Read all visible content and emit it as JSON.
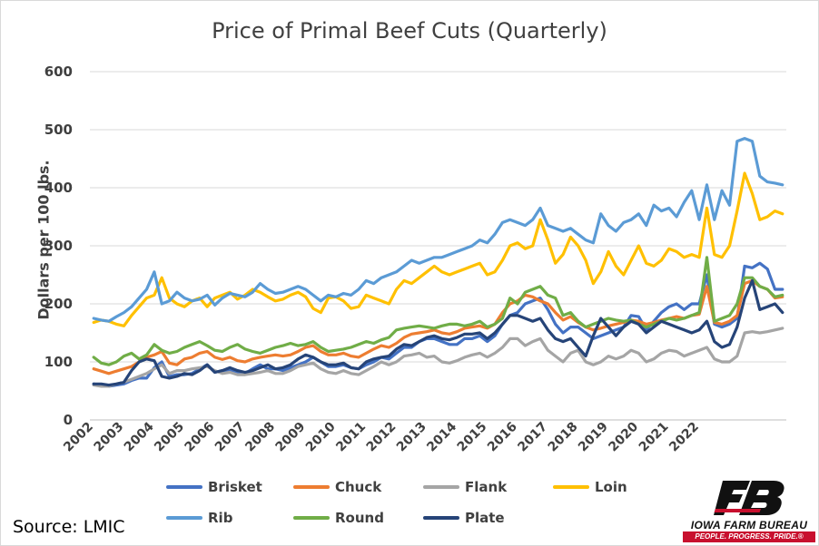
{
  "chart_data": {
    "type": "line",
    "title": "Price of Primal Beef Cuts (Quarterly)",
    "ylabel": "Dollars per 100 lbs.",
    "xlabel": "",
    "ylim": [
      0,
      600
    ],
    "yticks": [
      0,
      100,
      200,
      300,
      400,
      500,
      600
    ],
    "x_tick_labels": [
      "2002",
      "2003",
      "2004",
      "2005",
      "2006",
      "2007",
      "2008",
      "2009",
      "2010",
      "2011",
      "2012",
      "2013",
      "2014",
      "2015",
      "2016",
      "2017",
      "2018",
      "2019",
      "2020",
      "2021",
      "2022"
    ],
    "x_start_year": 2002,
    "grid": "horizontal",
    "legend_position": "bottom",
    "series": [
      {
        "name": "Brisket",
        "color": "#4472c4",
        "values": [
          62,
          60,
          58,
          60,
          62,
          68,
          72,
          72,
          90,
          100,
          75,
          78,
          78,
          80,
          88,
          95,
          82,
          85,
          85,
          82,
          80,
          88,
          95,
          88,
          88,
          85,
          90,
          95,
          100,
          108,
          100,
          92,
          92,
          95,
          90,
          88,
          95,
          100,
          108,
          105,
          115,
          125,
          125,
          135,
          140,
          140,
          135,
          130,
          130,
          140,
          140,
          145,
          135,
          145,
          165,
          180,
          185,
          200,
          205,
          210,
          190,
          165,
          150,
          160,
          160,
          150,
          140,
          145,
          150,
          155,
          160,
          180,
          178,
          155,
          170,
          185,
          195,
          200,
          190,
          200,
          200,
          250,
          165,
          160,
          165,
          175,
          265,
          262,
          270,
          260,
          225,
          225
        ]
      },
      {
        "name": "Chuck",
        "color": "#ed7d31",
        "values": [
          88,
          84,
          80,
          84,
          88,
          92,
          100,
          108,
          112,
          118,
          98,
          95,
          105,
          108,
          115,
          118,
          108,
          104,
          108,
          102,
          100,
          105,
          108,
          110,
          112,
          110,
          112,
          118,
          125,
          128,
          118,
          112,
          112,
          115,
          110,
          108,
          115,
          122,
          128,
          125,
          132,
          142,
          148,
          150,
          152,
          155,
          150,
          148,
          152,
          158,
          160,
          162,
          158,
          165,
          185,
          200,
          205,
          215,
          212,
          205,
          200,
          185,
          172,
          178,
          168,
          160,
          155,
          158,
          162,
          165,
          168,
          172,
          170,
          165,
          168,
          172,
          175,
          178,
          175,
          180,
          182,
          230,
          168,
          165,
          170,
          180,
          235,
          240,
          230,
          225,
          210,
          212
        ]
      },
      {
        "name": "Flank",
        "color": "#a5a5a5",
        "values": [
          60,
          58,
          58,
          62,
          65,
          70,
          75,
          80,
          88,
          95,
          80,
          85,
          85,
          88,
          90,
          92,
          85,
          80,
          82,
          78,
          78,
          80,
          82,
          85,
          80,
          80,
          85,
          92,
          95,
          98,
          88,
          82,
          80,
          85,
          80,
          78,
          85,
          92,
          100,
          95,
          100,
          110,
          112,
          115,
          108,
          110,
          100,
          98,
          102,
          108,
          112,
          115,
          108,
          115,
          125,
          140,
          140,
          128,
          135,
          140,
          120,
          110,
          100,
          115,
          120,
          100,
          95,
          100,
          110,
          105,
          110,
          120,
          115,
          100,
          105,
          115,
          120,
          118,
          110,
          115,
          120,
          125,
          105,
          100,
          100,
          110,
          150,
          152,
          150,
          152,
          155,
          158
        ]
      },
      {
        "name": "Loin",
        "color": "#ffc000",
        "values": [
          168,
          172,
          170,
          165,
          162,
          180,
          195,
          210,
          215,
          245,
          210,
          200,
          195,
          205,
          210,
          195,
          210,
          215,
          220,
          208,
          215,
          225,
          220,
          212,
          205,
          208,
          215,
          220,
          212,
          192,
          185,
          210,
          212,
          205,
          192,
          195,
          215,
          210,
          205,
          200,
          225,
          240,
          235,
          245,
          255,
          265,
          255,
          250,
          255,
          260,
          265,
          270,
          250,
          255,
          275,
          300,
          305,
          295,
          300,
          345,
          310,
          270,
          285,
          315,
          300,
          275,
          235,
          255,
          290,
          265,
          250,
          275,
          300,
          270,
          265,
          275,
          295,
          290,
          280,
          285,
          280,
          365,
          285,
          280,
          300,
          360,
          425,
          390,
          345,
          350,
          360,
          355
        ]
      },
      {
        "name": "Rib",
        "color": "#5b9bd5",
        "values": [
          175,
          172,
          170,
          178,
          185,
          195,
          210,
          225,
          255,
          200,
          205,
          220,
          210,
          205,
          208,
          215,
          198,
          210,
          218,
          215,
          212,
          220,
          235,
          225,
          218,
          220,
          225,
          230,
          225,
          215,
          205,
          215,
          212,
          218,
          215,
          225,
          240,
          235,
          245,
          250,
          255,
          265,
          275,
          270,
          275,
          280,
          280,
          285,
          290,
          295,
          300,
          310,
          305,
          320,
          340,
          345,
          340,
          335,
          345,
          365,
          335,
          330,
          325,
          330,
          320,
          310,
          305,
          355,
          335,
          325,
          340,
          345,
          355,
          335,
          370,
          360,
          365,
          350,
          375,
          395,
          345,
          405,
          345,
          395,
          370,
          480,
          485,
          480,
          420,
          410,
          408,
          405
        ]
      },
      {
        "name": "Round",
        "color": "#70ad47",
        "values": [
          108,
          98,
          95,
          100,
          110,
          115,
          105,
          112,
          130,
          120,
          115,
          118,
          125,
          130,
          135,
          128,
          120,
          118,
          125,
          130,
          122,
          118,
          115,
          120,
          125,
          128,
          132,
          128,
          130,
          135,
          125,
          118,
          120,
          122,
          125,
          130,
          135,
          132,
          138,
          142,
          155,
          158,
          160,
          162,
          160,
          158,
          162,
          165,
          165,
          162,
          165,
          170,
          160,
          165,
          175,
          210,
          200,
          220,
          225,
          230,
          215,
          210,
          180,
          185,
          170,
          160,
          165,
          170,
          175,
          172,
          170,
          172,
          165,
          160,
          165,
          170,
          175,
          172,
          175,
          180,
          185,
          280,
          170,
          175,
          180,
          200,
          245,
          245,
          230,
          225,
          212,
          215
        ]
      },
      {
        "name": "Plate",
        "color": "#264478",
        "values": [
          62,
          62,
          60,
          62,
          65,
          85,
          100,
          105,
          102,
          75,
          72,
          75,
          80,
          78,
          85,
          95,
          82,
          85,
          90,
          85,
          82,
          85,
          90,
          95,
          88,
          90,
          95,
          105,
          112,
          108,
          100,
          95,
          95,
          98,
          90,
          88,
          100,
          105,
          108,
          110,
          122,
          130,
          128,
          135,
          142,
          145,
          140,
          138,
          142,
          148,
          148,
          150,
          140,
          150,
          165,
          180,
          180,
          175,
          170,
          175,
          155,
          140,
          135,
          140,
          125,
          110,
          145,
          175,
          160,
          145,
          160,
          170,
          165,
          150,
          160,
          170,
          165,
          160,
          155,
          150,
          155,
          170,
          135,
          125,
          130,
          160,
          210,
          240,
          190,
          195,
          200,
          185
        ]
      }
    ]
  },
  "source": "Source: LMIC",
  "logo": {
    "name": "IOWA FARM BUREAU",
    "tagline": "PEOPLE. PROGRESS. PRIDE.®"
  }
}
